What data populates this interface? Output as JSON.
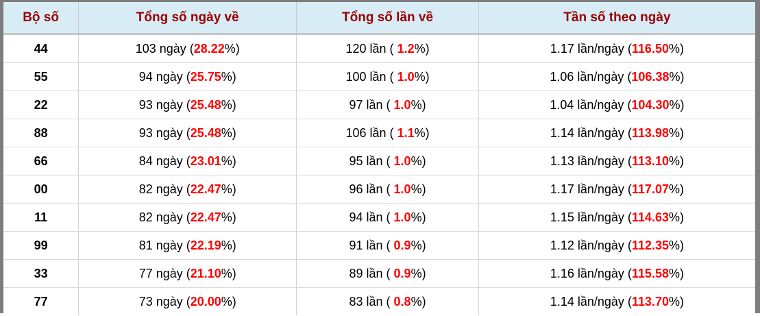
{
  "table": {
    "headers": [
      "Bộ số",
      "Tổng số ngày về",
      "Tổng số lần về",
      "Tần số theo ngày"
    ],
    "colors": {
      "header_bg": "#d8ecf6",
      "header_text": "#990000",
      "highlight_red": "#ff0000",
      "frame_gray": "#7d7d7d"
    },
    "rows": [
      {
        "set": "44",
        "days": {
          "pre": "103 ngày (",
          "pct": "28.22",
          "post": "%)"
        },
        "times": {
          "pre": "120 lần ( ",
          "pct": "1.2",
          "post": "%)"
        },
        "freq": {
          "pre": "1.17 lần/ngày (",
          "pct": "116.50",
          "post": "%)"
        }
      },
      {
        "set": "55",
        "days": {
          "pre": "94 ngày (",
          "pct": "25.75",
          "post": "%)"
        },
        "times": {
          "pre": "100 lần ( ",
          "pct": "1.0",
          "post": "%)"
        },
        "freq": {
          "pre": "1.06 lần/ngày (",
          "pct": "106.38",
          "post": "%)"
        }
      },
      {
        "set": "22",
        "days": {
          "pre": "93 ngày (",
          "pct": "25.48",
          "post": "%)"
        },
        "times": {
          "pre": "97 lần ( ",
          "pct": "1.0",
          "post": "%)"
        },
        "freq": {
          "pre": "1.04 lần/ngày (",
          "pct": "104.30",
          "post": "%)"
        }
      },
      {
        "set": "88",
        "days": {
          "pre": "93 ngày (",
          "pct": "25.48",
          "post": "%)"
        },
        "times": {
          "pre": "106 lần ( ",
          "pct": "1.1",
          "post": "%)"
        },
        "freq": {
          "pre": "1.14 lần/ngày (",
          "pct": "113.98",
          "post": "%)"
        }
      },
      {
        "set": "66",
        "days": {
          "pre": "84 ngày (",
          "pct": "23.01",
          "post": "%)"
        },
        "times": {
          "pre": "95 lần ( ",
          "pct": "1.0",
          "post": "%)"
        },
        "freq": {
          "pre": "1.13 lần/ngày (",
          "pct": "113.10",
          "post": "%)"
        }
      },
      {
        "set": "00",
        "days": {
          "pre": "82 ngày (",
          "pct": "22.47",
          "post": "%)"
        },
        "times": {
          "pre": "96 lần ( ",
          "pct": "1.0",
          "post": "%)"
        },
        "freq": {
          "pre": "1.17 lần/ngày (",
          "pct": "117.07",
          "post": "%)"
        }
      },
      {
        "set": "11",
        "days": {
          "pre": "82 ngày (",
          "pct": "22.47",
          "post": "%)"
        },
        "times": {
          "pre": "94 lần ( ",
          "pct": "1.0",
          "post": "%)"
        },
        "freq": {
          "pre": "1.15 lần/ngày (",
          "pct": "114.63",
          "post": "%)"
        }
      },
      {
        "set": "99",
        "days": {
          "pre": "81 ngày (",
          "pct": "22.19",
          "post": "%)"
        },
        "times": {
          "pre": "91 lần ( ",
          "pct": "0.9",
          "post": "%)"
        },
        "freq": {
          "pre": "1.12 lần/ngày (",
          "pct": "112.35",
          "post": "%)"
        }
      },
      {
        "set": "33",
        "days": {
          "pre": "77 ngày (",
          "pct": "21.10",
          "post": "%)"
        },
        "times": {
          "pre": "89 lần ( ",
          "pct": "0.9",
          "post": "%)"
        },
        "freq": {
          "pre": "1.16 lần/ngày (",
          "pct": "115.58",
          "post": "%)"
        }
      },
      {
        "set": "77",
        "days": {
          "pre": "73 ngày (",
          "pct": "20.00",
          "post": "%)"
        },
        "times": {
          "pre": "83 lần ( ",
          "pct": "0.8",
          "post": "%)"
        },
        "freq": {
          "pre": "1.14 lần/ngày (",
          "pct": "113.70",
          "post": "%)"
        }
      }
    ]
  }
}
